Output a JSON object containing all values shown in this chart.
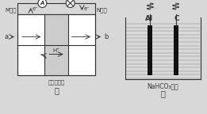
{
  "bg_color": "#d8d8d8",
  "fig_width": 2.61,
  "fig_height": 1.44,
  "title_jia": "甲",
  "title_yi": "乙",
  "label_M": "M电极",
  "label_N": "N电极",
  "label_a": "a",
  "label_b": "b",
  "label_H": "H⁺",
  "label_e1": "e⁻",
  "label_e2": "e⁻",
  "label_proton": "质子交换膜",
  "label_Al": "Al",
  "label_C": "C",
  "label_NaHCO3": "NaHCO₃溶液"
}
